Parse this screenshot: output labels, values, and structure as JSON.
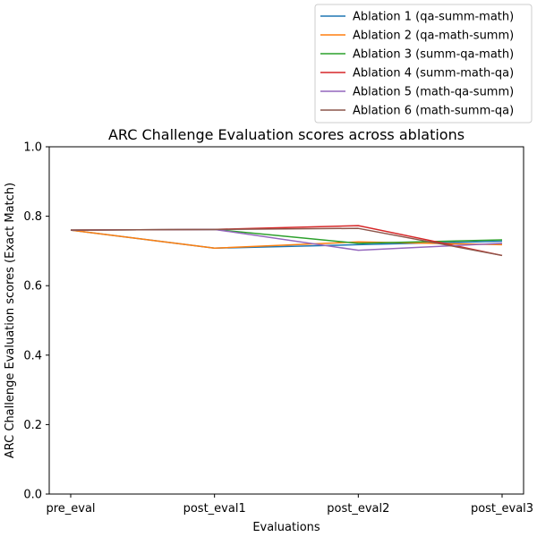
{
  "chart_data": {
    "type": "line",
    "title": "ARC Challenge Evaluation scores across ablations",
    "xlabel": "Evaluations",
    "ylabel": "ARC Challenge Evaluation scores (Exact Match)",
    "categories": [
      "pre_eval",
      "post_eval1",
      "post_eval2",
      "post_eval3"
    ],
    "ylim": [
      0.0,
      1.0
    ],
    "yticks": [
      "0.0",
      "0.2",
      "0.4",
      "0.6",
      "0.8",
      "1.0"
    ],
    "grid": false,
    "legend_position": "top-right, above plot",
    "series": [
      {
        "name": "Ablation 1 (qa-summ-math)",
        "color": "#1f77b4",
        "values": [
          0.76,
          0.708,
          0.718,
          0.728
        ]
      },
      {
        "name": "Ablation 2 (qa-math-summ)",
        "color": "#ff7f0e",
        "values": [
          0.76,
          0.708,
          0.726,
          0.718
        ]
      },
      {
        "name": "Ablation 3 (summ-qa-math)",
        "color": "#2ca02c",
        "values": [
          0.76,
          0.762,
          0.722,
          0.732
        ]
      },
      {
        "name": "Ablation 4 (summ-math-qa)",
        "color": "#d62728",
        "values": [
          0.76,
          0.762,
          0.773,
          0.687
        ]
      },
      {
        "name": "Ablation 5 (math-qa-summ)",
        "color": "#9467bd",
        "values": [
          0.76,
          0.762,
          0.702,
          0.722
        ]
      },
      {
        "name": "Ablation 6 (math-summ-qa)",
        "color": "#8c564b",
        "values": [
          0.76,
          0.762,
          0.765,
          0.687
        ]
      }
    ]
  }
}
